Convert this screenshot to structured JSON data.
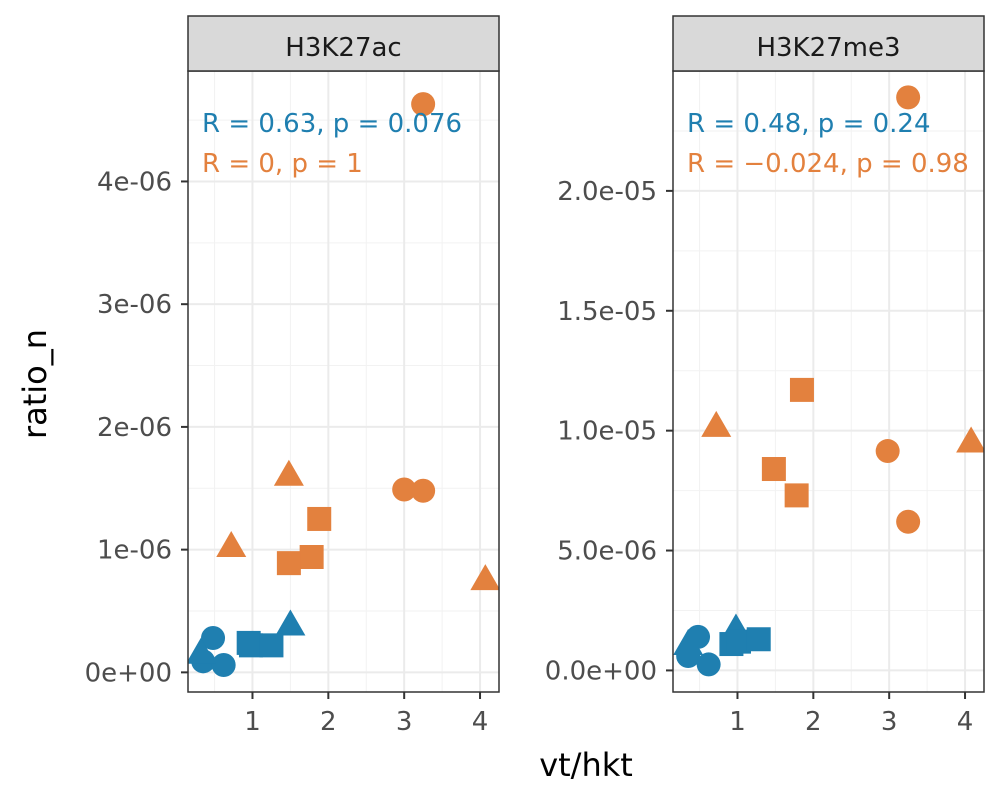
{
  "chart_data": {
    "type": "scatter",
    "xlabel": "vt/hkt",
    "ylabel": "ratio_n",
    "colors": {
      "blue": "#1f7fb0",
      "orange": "#e3813e"
    },
    "shape_types": [
      "circle",
      "square",
      "triangle"
    ],
    "panels": [
      {
        "title": "H3K27ac",
        "xlim": [
          0.15,
          4.25
        ],
        "ylim": [
          -1.6e-07,
          4.9e-06
        ],
        "xticks": [
          1,
          2,
          3,
          4
        ],
        "xtick_labels": [
          "1",
          "2",
          "3",
          "4"
        ],
        "yticks": [
          0,
          1e-06,
          2e-06,
          3e-06,
          4e-06
        ],
        "ytick_labels": [
          "0e+00",
          "1e-06",
          "2e-06",
          "3e-06",
          "4e-06"
        ],
        "annotations": [
          {
            "text": "R = 0.63, p = 0.076",
            "color": "blue"
          },
          {
            "text": "R = 0, p = 1",
            "color": "orange"
          }
        ],
        "series": [
          {
            "color": "orange",
            "points": [
              {
                "x": 3.25,
                "y": 4.63e-06,
                "shape": "circle"
              },
              {
                "x": 3.0,
                "y": 1.49e-06,
                "shape": "circle"
              },
              {
                "x": 3.25,
                "y": 1.48e-06,
                "shape": "circle"
              },
              {
                "x": 0.72,
                "y": 1.03e-06,
                "shape": "triangle"
              },
              {
                "x": 1.48,
                "y": 1.61e-06,
                "shape": "triangle"
              },
              {
                "x": 4.07,
                "y": 7.6e-07,
                "shape": "triangle"
              },
              {
                "x": 1.88,
                "y": 1.25e-06,
                "shape": "square"
              },
              {
                "x": 1.78,
                "y": 9.4e-07,
                "shape": "square"
              },
              {
                "x": 1.48,
                "y": 8.9e-07,
                "shape": "square"
              }
            ]
          },
          {
            "color": "blue",
            "points": [
              {
                "x": 0.48,
                "y": 2.8e-07,
                "shape": "circle"
              },
              {
                "x": 0.35,
                "y": 9e-08,
                "shape": "circle"
              },
              {
                "x": 0.62,
                "y": 6e-08,
                "shape": "circle"
              },
              {
                "x": 0.32,
                "y": 1.6e-07,
                "shape": "triangle"
              },
              {
                "x": 1.5,
                "y": 3.9e-07,
                "shape": "triangle"
              },
              {
                "x": 0.95,
                "y": 2.4e-07,
                "shape": "square"
              },
              {
                "x": 0.98,
                "y": 2.2e-07,
                "shape": "square"
              },
              {
                "x": 1.25,
                "y": 2.2e-07,
                "shape": "square"
              }
            ]
          }
        ]
      },
      {
        "title": "H3K27me3",
        "xlim": [
          0.15,
          4.25
        ],
        "ylim": [
          -9e-07,
          2.5e-05
        ],
        "xticks": [
          1,
          2,
          3,
          4
        ],
        "xtick_labels": [
          "1",
          "2",
          "3",
          "4"
        ],
        "yticks": [
          0,
          5e-06,
          1e-05,
          1.5e-05,
          2e-05
        ],
        "ytick_labels": [
          "0.0e+00",
          "5.0e-06",
          "1.0e-05",
          "1.5e-05",
          "2.0e-05"
        ],
        "annotations": [
          {
            "text": "R = 0.48, p = 0.24",
            "color": "blue"
          },
          {
            "text": "R = −0.024, p = 0.98",
            "color": "orange"
          }
        ],
        "series": [
          {
            "color": "orange",
            "points": [
              {
                "x": 3.25,
                "y": 2.39e-05,
                "shape": "circle"
              },
              {
                "x": 2.98,
                "y": 9.15e-06,
                "shape": "circle"
              },
              {
                "x": 3.25,
                "y": 6.2e-06,
                "shape": "circle"
              },
              {
                "x": 0.72,
                "y": 1.02e-05,
                "shape": "triangle"
              },
              {
                "x": 4.08,
                "y": 9.55e-06,
                "shape": "triangle"
              },
              {
                "x": 1.85,
                "y": 1.17e-05,
                "shape": "square"
              },
              {
                "x": 1.48,
                "y": 8.4e-06,
                "shape": "square"
              },
              {
                "x": 1.78,
                "y": 7.3e-06,
                "shape": "square"
              }
            ]
          },
          {
            "color": "blue",
            "points": [
              {
                "x": 0.48,
                "y": 1.4e-06,
                "shape": "circle"
              },
              {
                "x": 0.35,
                "y": 6e-07,
                "shape": "circle"
              },
              {
                "x": 0.62,
                "y": 2.5e-07,
                "shape": "circle"
              },
              {
                "x": 0.35,
                "y": 1.1e-06,
                "shape": "triangle"
              },
              {
                "x": 0.98,
                "y": 1.75e-06,
                "shape": "triangle"
              },
              {
                "x": 0.92,
                "y": 1.1e-06,
                "shape": "square"
              },
              {
                "x": 1.02,
                "y": 1.2e-06,
                "shape": "square"
              },
              {
                "x": 1.28,
                "y": 1.3e-06,
                "shape": "square"
              }
            ]
          }
        ]
      }
    ]
  }
}
